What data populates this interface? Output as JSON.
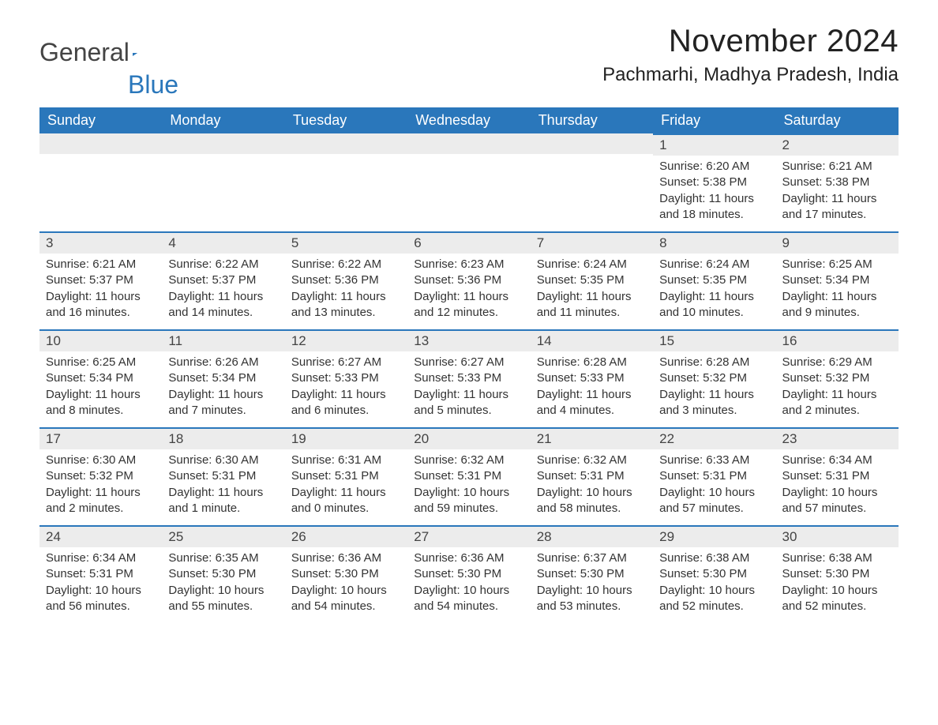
{
  "brand": {
    "name1": "General",
    "name2": "Blue"
  },
  "title": "November 2024",
  "location": "Pachmarhi, Madhya Pradesh, India",
  "colors": {
    "header_bg": "#2a77bb",
    "header_text": "#ffffff",
    "daybar_bg": "#ececec",
    "daybar_border": "#2a77bb",
    "text": "#333333",
    "background": "#ffffff"
  },
  "day_labels": [
    "Sunday",
    "Monday",
    "Tuesday",
    "Wednesday",
    "Thursday",
    "Friday",
    "Saturday"
  ],
  "weeks": [
    [
      null,
      null,
      null,
      null,
      null,
      {
        "n": "1",
        "sunrise": "Sunrise: 6:20 AM",
        "sunset": "Sunset: 5:38 PM",
        "daylight": "Daylight: 11 hours and 18 minutes."
      },
      {
        "n": "2",
        "sunrise": "Sunrise: 6:21 AM",
        "sunset": "Sunset: 5:38 PM",
        "daylight": "Daylight: 11 hours and 17 minutes."
      }
    ],
    [
      {
        "n": "3",
        "sunrise": "Sunrise: 6:21 AM",
        "sunset": "Sunset: 5:37 PM",
        "daylight": "Daylight: 11 hours and 16 minutes."
      },
      {
        "n": "4",
        "sunrise": "Sunrise: 6:22 AM",
        "sunset": "Sunset: 5:37 PM",
        "daylight": "Daylight: 11 hours and 14 minutes."
      },
      {
        "n": "5",
        "sunrise": "Sunrise: 6:22 AM",
        "sunset": "Sunset: 5:36 PM",
        "daylight": "Daylight: 11 hours and 13 minutes."
      },
      {
        "n": "6",
        "sunrise": "Sunrise: 6:23 AM",
        "sunset": "Sunset: 5:36 PM",
        "daylight": "Daylight: 11 hours and 12 minutes."
      },
      {
        "n": "7",
        "sunrise": "Sunrise: 6:24 AM",
        "sunset": "Sunset: 5:35 PM",
        "daylight": "Daylight: 11 hours and 11 minutes."
      },
      {
        "n": "8",
        "sunrise": "Sunrise: 6:24 AM",
        "sunset": "Sunset: 5:35 PM",
        "daylight": "Daylight: 11 hours and 10 minutes."
      },
      {
        "n": "9",
        "sunrise": "Sunrise: 6:25 AM",
        "sunset": "Sunset: 5:34 PM",
        "daylight": "Daylight: 11 hours and 9 minutes."
      }
    ],
    [
      {
        "n": "10",
        "sunrise": "Sunrise: 6:25 AM",
        "sunset": "Sunset: 5:34 PM",
        "daylight": "Daylight: 11 hours and 8 minutes."
      },
      {
        "n": "11",
        "sunrise": "Sunrise: 6:26 AM",
        "sunset": "Sunset: 5:34 PM",
        "daylight": "Daylight: 11 hours and 7 minutes."
      },
      {
        "n": "12",
        "sunrise": "Sunrise: 6:27 AM",
        "sunset": "Sunset: 5:33 PM",
        "daylight": "Daylight: 11 hours and 6 minutes."
      },
      {
        "n": "13",
        "sunrise": "Sunrise: 6:27 AM",
        "sunset": "Sunset: 5:33 PM",
        "daylight": "Daylight: 11 hours and 5 minutes."
      },
      {
        "n": "14",
        "sunrise": "Sunrise: 6:28 AM",
        "sunset": "Sunset: 5:33 PM",
        "daylight": "Daylight: 11 hours and 4 minutes."
      },
      {
        "n": "15",
        "sunrise": "Sunrise: 6:28 AM",
        "sunset": "Sunset: 5:32 PM",
        "daylight": "Daylight: 11 hours and 3 minutes."
      },
      {
        "n": "16",
        "sunrise": "Sunrise: 6:29 AM",
        "sunset": "Sunset: 5:32 PM",
        "daylight": "Daylight: 11 hours and 2 minutes."
      }
    ],
    [
      {
        "n": "17",
        "sunrise": "Sunrise: 6:30 AM",
        "sunset": "Sunset: 5:32 PM",
        "daylight": "Daylight: 11 hours and 2 minutes."
      },
      {
        "n": "18",
        "sunrise": "Sunrise: 6:30 AM",
        "sunset": "Sunset: 5:31 PM",
        "daylight": "Daylight: 11 hours and 1 minute."
      },
      {
        "n": "19",
        "sunrise": "Sunrise: 6:31 AM",
        "sunset": "Sunset: 5:31 PM",
        "daylight": "Daylight: 11 hours and 0 minutes."
      },
      {
        "n": "20",
        "sunrise": "Sunrise: 6:32 AM",
        "sunset": "Sunset: 5:31 PM",
        "daylight": "Daylight: 10 hours and 59 minutes."
      },
      {
        "n": "21",
        "sunrise": "Sunrise: 6:32 AM",
        "sunset": "Sunset: 5:31 PM",
        "daylight": "Daylight: 10 hours and 58 minutes."
      },
      {
        "n": "22",
        "sunrise": "Sunrise: 6:33 AM",
        "sunset": "Sunset: 5:31 PM",
        "daylight": "Daylight: 10 hours and 57 minutes."
      },
      {
        "n": "23",
        "sunrise": "Sunrise: 6:34 AM",
        "sunset": "Sunset: 5:31 PM",
        "daylight": "Daylight: 10 hours and 57 minutes."
      }
    ],
    [
      {
        "n": "24",
        "sunrise": "Sunrise: 6:34 AM",
        "sunset": "Sunset: 5:31 PM",
        "daylight": "Daylight: 10 hours and 56 minutes."
      },
      {
        "n": "25",
        "sunrise": "Sunrise: 6:35 AM",
        "sunset": "Sunset: 5:30 PM",
        "daylight": "Daylight: 10 hours and 55 minutes."
      },
      {
        "n": "26",
        "sunrise": "Sunrise: 6:36 AM",
        "sunset": "Sunset: 5:30 PM",
        "daylight": "Daylight: 10 hours and 54 minutes."
      },
      {
        "n": "27",
        "sunrise": "Sunrise: 6:36 AM",
        "sunset": "Sunset: 5:30 PM",
        "daylight": "Daylight: 10 hours and 54 minutes."
      },
      {
        "n": "28",
        "sunrise": "Sunrise: 6:37 AM",
        "sunset": "Sunset: 5:30 PM",
        "daylight": "Daylight: 10 hours and 53 minutes."
      },
      {
        "n": "29",
        "sunrise": "Sunrise: 6:38 AM",
        "sunset": "Sunset: 5:30 PM",
        "daylight": "Daylight: 10 hours and 52 minutes."
      },
      {
        "n": "30",
        "sunrise": "Sunrise: 6:38 AM",
        "sunset": "Sunset: 5:30 PM",
        "daylight": "Daylight: 10 hours and 52 minutes."
      }
    ]
  ]
}
